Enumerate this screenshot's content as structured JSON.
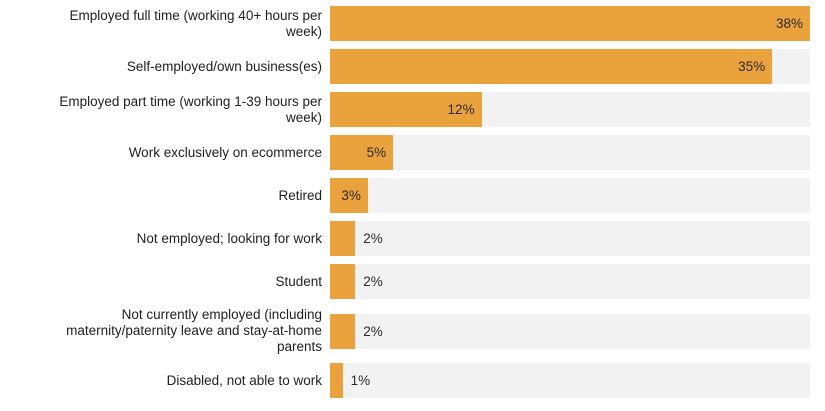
{
  "style": {
    "bar_color": "#EAA23C",
    "track_color": "#F2F2F2",
    "label_color": "#212121",
    "value_color": "#2B2B2B",
    "background": "#FFFFFF"
  },
  "chart_data": {
    "type": "bar",
    "orientation": "horizontal",
    "title": "",
    "xlabel": "",
    "ylabel": "",
    "xlim": [
      0,
      38
    ],
    "grid": false,
    "legend": false,
    "value_label_format": "percent",
    "categories": [
      "Employed full time (working 40+ hours per week)",
      "Self-employed/own business(es)",
      "Employed part time (working 1-39 hours per week)",
      "Work exclusively on ecommerce",
      "Retired",
      "Not employed; looking for work",
      "Student",
      "Not currently employed (including maternity/paternity leave and stay-at-home parents",
      "Disabled, not able to work"
    ],
    "values": [
      38,
      35,
      12,
      5,
      3,
      2,
      2,
      2,
      1
    ],
    "bars": [
      {
        "label": "Employed full time (working 40+ hours per week)",
        "lines": [
          "Employed full time (working 40+ hours per",
          "week)"
        ],
        "value": 38,
        "value_label": "38%",
        "value_inside": true
      },
      {
        "label": "Self-employed/own business(es)",
        "lines": [
          "Self-employed/own business(es)"
        ],
        "value": 35,
        "value_label": "35%",
        "value_inside": true
      },
      {
        "label": "Employed part time (working 1-39 hours per week)",
        "lines": [
          "Employed part time (working 1-39 hours per",
          "week)"
        ],
        "value": 12,
        "value_label": "12%",
        "value_inside": true
      },
      {
        "label": "Work exclusively on ecommerce",
        "lines": [
          "Work exclusively on ecommerce"
        ],
        "value": 5,
        "value_label": "5%",
        "value_inside": true
      },
      {
        "label": "Retired",
        "lines": [
          "Retired"
        ],
        "value": 3,
        "value_label": "3%",
        "value_inside": true
      },
      {
        "label": "Not employed; looking for work",
        "lines": [
          "Not employed; looking for work"
        ],
        "value": 2,
        "value_label": "2%",
        "value_inside": false
      },
      {
        "label": "Student",
        "lines": [
          "Student"
        ],
        "value": 2,
        "value_label": "2%",
        "value_inside": false
      },
      {
        "label": "Not currently employed (including maternity/paternity leave and stay-at-home parents",
        "lines": [
          "Not currently employed (including",
          "maternity/paternity leave and stay-at-home",
          "parents"
        ],
        "value": 2,
        "value_label": "2%",
        "value_inside": false
      },
      {
        "label": "Disabled, not able to work",
        "lines": [
          "Disabled, not able to work"
        ],
        "value": 1,
        "value_label": "1%",
        "value_inside": false
      }
    ]
  }
}
